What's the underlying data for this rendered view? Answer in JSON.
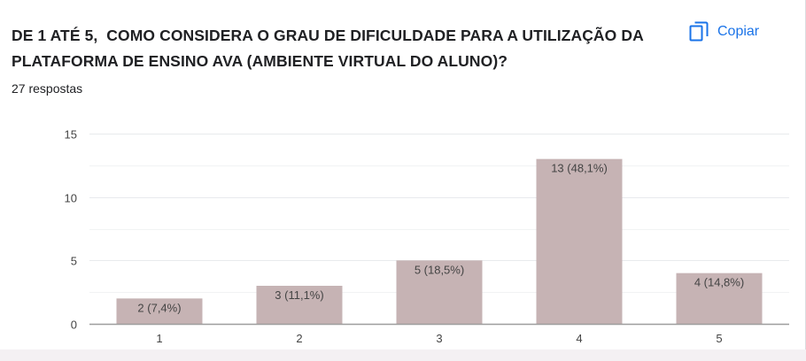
{
  "question": {
    "title": "DE 1 ATÉ 5,  COMO CONSIDERA O GRAU DE DIFICULDADE PARA A UTILIZAÇÃO DA PLATAFORMA DE ENSINO AVA (AMBIENTE VIRTUAL DO ALUNO)?",
    "responses": "27 respostas"
  },
  "actions": {
    "copy_label": "Copiar",
    "copy_icon": "copy-icon"
  },
  "colors": {
    "bar": "#c6b3b4",
    "accent": "#1a73e8",
    "gridline": "#e8eaed",
    "axis": "#9e9e9e",
    "label": "#444444"
  },
  "chart_data": {
    "type": "bar",
    "categories": [
      "1",
      "2",
      "3",
      "4",
      "5"
    ],
    "values": [
      2,
      3,
      5,
      13,
      4
    ],
    "data_labels": [
      "2 (7,4%)",
      "3 (11,1%)",
      "5 (18,5%)",
      "13 (48,1%)",
      "4 (14,8%)"
    ],
    "yticks": [
      "0",
      "5",
      "10",
      "15"
    ],
    "ylim": [
      0,
      15
    ],
    "title": "",
    "xlabel": "",
    "ylabel": "",
    "grid": true,
    "legend": "none"
  }
}
